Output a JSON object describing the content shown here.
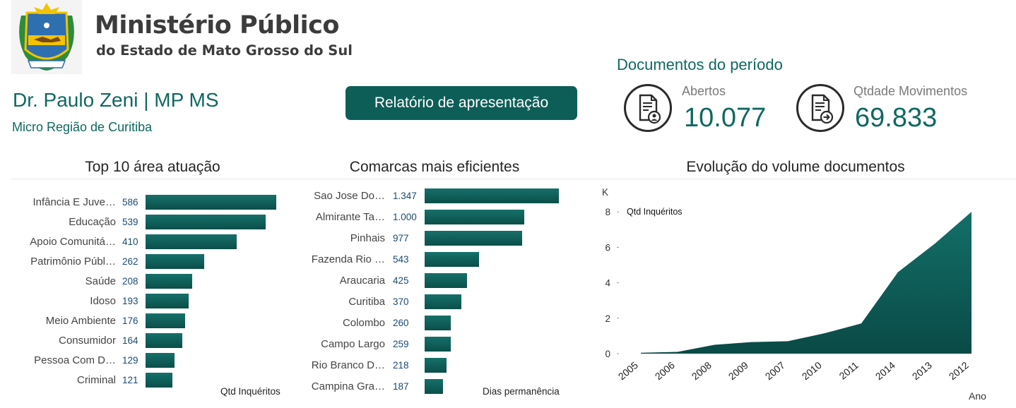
{
  "header": {
    "org_name": "Ministério Público",
    "org_subtitle": "do Estado de Mato Grosso do Sul",
    "person": "Dr. Paulo Zeni | MP MS",
    "region": "Micro Região de Curitiba",
    "report_button": "Relatório de apresentação"
  },
  "kpis": {
    "title": "Documentos do período",
    "items": [
      {
        "label": "Abertos",
        "value": "10.077",
        "icon": "document-person-icon"
      },
      {
        "label": "Qtdade Movimentos",
        "value": "69.833",
        "icon": "document-arrow-icon"
      }
    ]
  },
  "colors": {
    "accent": "#0f6860",
    "bar": "#0e5e58",
    "value_text": "#1a4a72"
  },
  "chart_data": [
    {
      "type": "bar",
      "orientation": "horizontal",
      "title": "Top 10 área atuação",
      "xlabel": "Qtd Inquéritos",
      "categories": [
        "Infância E Juve…",
        "Educação",
        "Apoio Comunitá…",
        "Patrimônio Públ…",
        "Saúde",
        "Idoso",
        "Meio Ambiente",
        "Consumidor",
        "Pessoa Com D…",
        "Criminal"
      ],
      "values": [
        586,
        539,
        410,
        262,
        208,
        193,
        176,
        164,
        129,
        121
      ],
      "labels": [
        "586",
        "539",
        "410",
        "262",
        "208",
        "193",
        "176",
        "164",
        "129",
        "121"
      ]
    },
    {
      "type": "bar",
      "orientation": "horizontal",
      "title": "Comarcas mais eficientes",
      "xlabel": "Dias permanência",
      "categories": [
        "Sao Jose Do…",
        "Almirante Ta…",
        "Pinhais",
        "Fazenda Rio …",
        "Araucaria",
        "Curitiba",
        "Colombo",
        "Campo Largo",
        "Rio Branco D…",
        "Campina Gra…"
      ],
      "values": [
        1347,
        1000,
        977,
        543,
        425,
        370,
        260,
        259,
        218,
        187
      ],
      "labels": [
        "1.347",
        "1.000",
        "977",
        "543",
        "425",
        "370",
        "260",
        "259",
        "218",
        "187"
      ]
    },
    {
      "type": "area",
      "title": "Evolução do volume documentos",
      "ylabel": "Qtd Inquéritos",
      "yunit": "K",
      "xlabel": "Ano",
      "x": [
        "2005",
        "2006",
        "2008",
        "2009",
        "2007",
        "2010",
        "2011",
        "2014",
        "2013",
        "2012"
      ],
      "y": [
        0.05,
        0.1,
        0.5,
        0.65,
        0.7,
        1.15,
        1.7,
        4.6,
        6.2,
        8.0
      ],
      "ylim": [
        0,
        9
      ],
      "yticks": [
        "0",
        "2",
        "4",
        "6",
        "8"
      ],
      "grid": false
    }
  ]
}
